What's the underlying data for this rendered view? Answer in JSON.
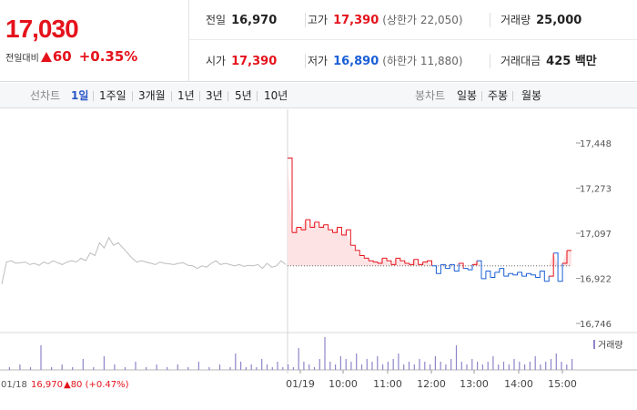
{
  "summary": {
    "price": "17,030",
    "change_label": "전일대비",
    "change_amount": "60",
    "change_percent": "+0.35%"
  },
  "stats": {
    "prev_close_label": "전일",
    "prev_close": "16,970",
    "high_label": "고가",
    "high": "17,390",
    "upper_limit": "(상한가 22,050)",
    "volume_label": "거래량",
    "volume": "25,000",
    "open_label": "시가",
    "open": "17,390",
    "low_label": "저가",
    "low": "16,890",
    "lower_limit": "(하한가 11,880)",
    "turnover_label": "거래대금",
    "turnover": "425 백만"
  },
  "tabs": {
    "line_chart_label": "선차트",
    "periods": [
      "1일",
      "1주일",
      "3개월",
      "1년",
      "3년",
      "5년",
      "10년"
    ],
    "selected_period": "1일",
    "candle_chart_label": "봉차트",
    "candles": [
      "일봉",
      "주봉",
      "월봉"
    ]
  },
  "colors": {
    "up": "#e5121b",
    "down": "#1a5fd6",
    "prev_line": "#bdbdbd"
  },
  "chart_data": {
    "type": "line",
    "y_ticks": [
      "17,448",
      "17,273",
      "17,097",
      "16,922",
      "16,746"
    ],
    "ylim": [
      16746,
      17448
    ],
    "base_value": 16970,
    "x_ticks": [
      "01/19",
      "10:00",
      "11:00",
      "12:00",
      "13:00",
      "14:00",
      "15:00"
    ],
    "legend": "거래량",
    "prev_day_info": {
      "date": "01/18",
      "price": "16,970",
      "change": "▲80 (+0.47%)"
    },
    "prev_series": [
      16900,
      16985,
      16990,
      16980,
      16982,
      16985,
      16975,
      16980,
      16972,
      16985,
      16978,
      16990,
      16982,
      16975,
      16985,
      16990,
      16985,
      17000,
      16990,
      17020,
      17010,
      17060,
      17040,
      17080,
      17050,
      17060,
      17040,
      17020,
      17000,
      16985,
      16990,
      16985,
      16980,
      16975,
      16985,
      16980,
      16978,
      16975,
      16980,
      16982,
      16972,
      16970,
      16960,
      16970,
      16965,
      16980,
      16990,
      16975,
      16980,
      16975,
      16970,
      16975,
      16968,
      16972,
      16970,
      16975,
      16960,
      16980,
      16965,
      16970,
      16990,
      16975
    ],
    "today_series": [
      17390,
      17100,
      17120,
      17110,
      17150,
      17120,
      17140,
      17120,
      17130,
      17110,
      17100,
      17120,
      17090,
      17110,
      17050,
      17030,
      17010,
      17000,
      16990,
      16985,
      16980,
      17000,
      16990,
      16975,
      17000,
      16990,
      16980,
      16975,
      16995,
      16975,
      16985,
      16990,
      16970,
      16940,
      16975,
      16960,
      16975,
      16950,
      16980,
      16960,
      16955,
      16975,
      16990,
      16920,
      16950,
      16925,
      16945,
      16960,
      16930,
      16940,
      16935,
      16945,
      16930,
      16940,
      16935,
      16925,
      16950,
      16910,
      16930,
      17020,
      16910,
      16980,
      17030,
      17030
    ],
    "volume_series": [
      0,
      1,
      0,
      2,
      0,
      1,
      0,
      9,
      0,
      1,
      0,
      2,
      0,
      1,
      0,
      4,
      0,
      1,
      0,
      5,
      0,
      2,
      0,
      1,
      0,
      3,
      0,
      1,
      0,
      2,
      0,
      1,
      0,
      2,
      0,
      1,
      0,
      3,
      0,
      1,
      0,
      2,
      0,
      1,
      6,
      3,
      1,
      2,
      1,
      4,
      2,
      1,
      3,
      1,
      2,
      1,
      8,
      3,
      2,
      1,
      4,
      12,
      3,
      2,
      5,
      4,
      3,
      6,
      2,
      4,
      3,
      5,
      2,
      3,
      4,
      6,
      2,
      3,
      2,
      4,
      3,
      2,
      5,
      3,
      2,
      4,
      9,
      3,
      2,
      4,
      3,
      2,
      3,
      5,
      2,
      3,
      2,
      4,
      3,
      2,
      3,
      5,
      2,
      3,
      4,
      6,
      3,
      2,
      4
    ]
  }
}
